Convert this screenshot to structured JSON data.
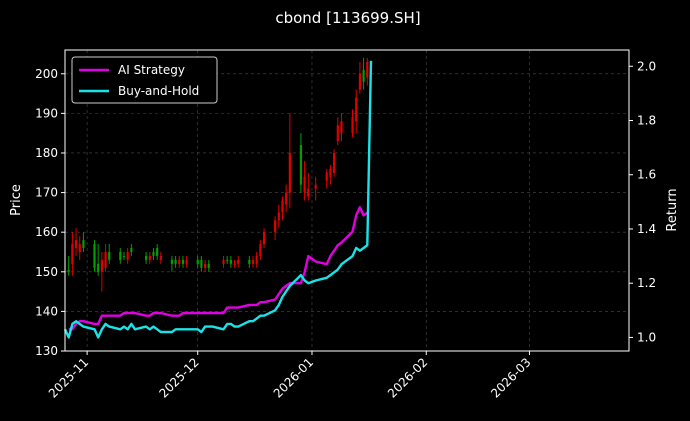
{
  "chart_data": {
    "type": "line",
    "title": "cbond [113699.SH]",
    "ylabel_left": "Price",
    "ylabel_right": "Return",
    "ylim_left": [
      130,
      206
    ],
    "ylim_right": [
      0.95,
      2.06
    ],
    "yticks_left": [
      130,
      140,
      150,
      160,
      170,
      180,
      190,
      200
    ],
    "yticks_right": [
      1.0,
      1.2,
      1.4,
      1.6,
      1.8,
      2.0
    ],
    "x_start_date": "2025-10-26",
    "x_end_date": "2026-03-28",
    "x_ticks": [
      {
        "label": "2025-11",
        "date": "2025-11-01"
      },
      {
        "label": "2025-12",
        "date": "2025-12-01"
      },
      {
        "label": "2026-01",
        "date": "2026-01-01"
      },
      {
        "label": "2026-02",
        "date": "2026-02-01"
      },
      {
        "label": "2026-03",
        "date": "2026-03-01"
      }
    ],
    "grid": true,
    "legend_position": "top-left",
    "colors": {
      "up": "#e00000",
      "down": "#00a000",
      "ai": "#e100e1",
      "bh": "#19e3e8"
    },
    "series": [
      {
        "name": "AI Strategy",
        "x": [
          "2025-10-27",
          "2025-10-28",
          "2025-10-29",
          "2025-10-30",
          "2025-10-31",
          "2025-11-03",
          "2025-11-04",
          "2025-11-05",
          "2025-11-06",
          "2025-11-07",
          "2025-11-10",
          "2025-11-11",
          "2025-11-12",
          "2025-11-13",
          "2025-11-14",
          "2025-11-17",
          "2025-11-18",
          "2025-11-19",
          "2025-11-20",
          "2025-11-21",
          "2025-11-24",
          "2025-11-25",
          "2025-11-26",
          "2025-11-27",
          "2025-11-28",
          "2025-12-01",
          "2025-12-02",
          "2025-12-03",
          "2025-12-04",
          "2025-12-05",
          "2025-12-08",
          "2025-12-09",
          "2025-12-10",
          "2025-12-11",
          "2025-12-12",
          "2025-12-15",
          "2025-12-16",
          "2025-12-17",
          "2025-12-18",
          "2025-12-19",
          "2025-12-22",
          "2025-12-23",
          "2025-12-24",
          "2025-12-25",
          "2025-12-26",
          "2025-12-29",
          "2025-12-30",
          "2025-12-31",
          "2026-01-02",
          "2026-01-05",
          "2026-01-06",
          "2026-01-07",
          "2026-01-08",
          "2026-01-09",
          "2026-01-12",
          "2026-01-13",
          "2026-01-14",
          "2026-01-15",
          "2026-01-16"
        ],
        "values": [
          1.03,
          1.03,
          1.05,
          1.06,
          1.06,
          1.05,
          1.05,
          1.08,
          1.08,
          1.08,
          1.08,
          1.09,
          1.09,
          1.09,
          1.09,
          1.08,
          1.08,
          1.09,
          1.09,
          1.09,
          1.08,
          1.08,
          1.08,
          1.09,
          1.09,
          1.09,
          1.09,
          1.09,
          1.09,
          1.09,
          1.09,
          1.11,
          1.11,
          1.11,
          1.11,
          1.12,
          1.12,
          1.12,
          1.13,
          1.13,
          1.14,
          1.16,
          1.18,
          1.19,
          1.2,
          1.2,
          1.24,
          1.3,
          1.28,
          1.27,
          1.3,
          1.32,
          1.34,
          1.35,
          1.39,
          1.45,
          1.48,
          1.45,
          1.46
        ]
      },
      {
        "name": "Buy-and-Hold",
        "x": [
          "2025-10-26",
          "2025-10-27",
          "2025-10-28",
          "2025-10-29",
          "2025-10-30",
          "2025-10-31",
          "2025-11-03",
          "2025-11-04",
          "2025-11-05",
          "2025-11-06",
          "2025-11-07",
          "2025-11-10",
          "2025-11-11",
          "2025-11-12",
          "2025-11-13",
          "2025-11-14",
          "2025-11-17",
          "2025-11-18",
          "2025-11-19",
          "2025-11-20",
          "2025-11-21",
          "2025-11-24",
          "2025-11-25",
          "2025-11-26",
          "2025-11-27",
          "2025-11-28",
          "2025-12-01",
          "2025-12-02",
          "2025-12-03",
          "2025-12-04",
          "2025-12-05",
          "2025-12-08",
          "2025-12-09",
          "2025-12-10",
          "2025-12-11",
          "2025-12-12",
          "2025-12-15",
          "2025-12-16",
          "2025-12-17",
          "2025-12-18",
          "2025-12-19",
          "2025-12-22",
          "2025-12-23",
          "2025-12-24",
          "2025-12-25",
          "2025-12-26",
          "2025-12-29",
          "2025-12-30",
          "2025-12-31",
          "2026-01-02",
          "2026-01-05",
          "2026-01-06",
          "2026-01-07",
          "2026-01-08",
          "2026-01-09",
          "2026-01-12",
          "2026-01-13",
          "2026-01-14",
          "2026-01-15",
          "2026-01-16",
          "2026-01-17"
        ],
        "values": [
          1.03,
          1.0,
          1.05,
          1.06,
          1.05,
          1.04,
          1.03,
          1.0,
          1.03,
          1.05,
          1.04,
          1.03,
          1.04,
          1.03,
          1.05,
          1.03,
          1.04,
          1.03,
          1.04,
          1.03,
          1.02,
          1.02,
          1.03,
          1.03,
          1.03,
          1.03,
          1.03,
          1.02,
          1.04,
          1.04,
          1.04,
          1.03,
          1.05,
          1.05,
          1.04,
          1.04,
          1.06,
          1.06,
          1.07,
          1.08,
          1.08,
          1.1,
          1.12,
          1.15,
          1.17,
          1.19,
          1.23,
          1.21,
          1.2,
          1.21,
          1.22,
          1.23,
          1.24,
          1.25,
          1.27,
          1.3,
          1.33,
          1.32,
          1.33,
          1.34,
          2.02
        ]
      }
    ],
    "candles": [
      {
        "date": "2025-10-27",
        "open": 150.5,
        "high": 154,
        "low": 149,
        "close": 150,
        "dir": "down"
      },
      {
        "date": "2025-10-28",
        "open": 152,
        "high": 160,
        "low": 149,
        "close": 157,
        "dir": "up"
      },
      {
        "date": "2025-10-29",
        "open": 156,
        "high": 161,
        "low": 154,
        "close": 158,
        "dir": "up"
      },
      {
        "date": "2025-10-30",
        "open": 155,
        "high": 159,
        "low": 153,
        "close": 157,
        "dir": "up"
      },
      {
        "date": "2025-10-31",
        "open": 158,
        "high": 160,
        "low": 155,
        "close": 156,
        "dir": "down"
      },
      {
        "date": "2025-11-03",
        "open": 157,
        "high": 158,
        "low": 150,
        "close": 151,
        "dir": "down"
      },
      {
        "date": "2025-11-04",
        "open": 152,
        "high": 157,
        "low": 149,
        "close": 150,
        "dir": "down"
      },
      {
        "date": "2025-11-05",
        "open": 150,
        "high": 155,
        "low": 145,
        "close": 153,
        "dir": "up"
      },
      {
        "date": "2025-11-06",
        "open": 151,
        "high": 157,
        "low": 150,
        "close": 155,
        "dir": "up"
      },
      {
        "date": "2025-11-07",
        "open": 155,
        "high": 157,
        "low": 152,
        "close": 153,
        "dir": "down"
      },
      {
        "date": "2025-11-10",
        "open": 155,
        "high": 156,
        "low": 152,
        "close": 153,
        "dir": "down"
      },
      {
        "date": "2025-11-11",
        "open": 154,
        "high": 155,
        "low": 153,
        "close": 154,
        "dir": "down"
      },
      {
        "date": "2025-11-12",
        "open": 153,
        "high": 156,
        "low": 152,
        "close": 155,
        "dir": "up"
      },
      {
        "date": "2025-11-13",
        "open": 156,
        "high": 157,
        "low": 154,
        "close": 155,
        "dir": "down"
      },
      {
        "date": "2025-11-17",
        "open": 154,
        "high": 155,
        "low": 152,
        "close": 153,
        "dir": "down"
      },
      {
        "date": "2025-11-18",
        "open": 153,
        "high": 155,
        "low": 152,
        "close": 154,
        "dir": "up"
      },
      {
        "date": "2025-11-19",
        "open": 155,
        "high": 156,
        "low": 153,
        "close": 154,
        "dir": "down"
      },
      {
        "date": "2025-11-20",
        "open": 156,
        "high": 157,
        "low": 153,
        "close": 154,
        "dir": "down"
      },
      {
        "date": "2025-11-21",
        "open": 153,
        "high": 155,
        "low": 152,
        "close": 154,
        "dir": "up"
      },
      {
        "date": "2025-11-24",
        "open": 152,
        "high": 154,
        "low": 150,
        "close": 153,
        "dir": "down"
      },
      {
        "date": "2025-11-25",
        "open": 153,
        "high": 154,
        "low": 151,
        "close": 152,
        "dir": "down"
      },
      {
        "date": "2025-11-26",
        "open": 152,
        "high": 154,
        "low": 151,
        "close": 153,
        "dir": "up"
      },
      {
        "date": "2025-11-27",
        "open": 153,
        "high": 154,
        "low": 151,
        "close": 152,
        "dir": "down"
      },
      {
        "date": "2025-11-28",
        "open": 152,
        "high": 154,
        "low": 151,
        "close": 153,
        "dir": "up"
      },
      {
        "date": "2025-12-01",
        "open": 153,
        "high": 154,
        "low": 151,
        "close": 152,
        "dir": "down"
      },
      {
        "date": "2025-12-02",
        "open": 153,
        "high": 154,
        "low": 150,
        "close": 151,
        "dir": "down"
      },
      {
        "date": "2025-12-03",
        "open": 151,
        "high": 153,
        "low": 150,
        "close": 152,
        "dir": "up"
      },
      {
        "date": "2025-12-04",
        "open": 152,
        "high": 153,
        "low": 150,
        "close": 151,
        "dir": "down"
      },
      {
        "date": "2025-12-08",
        "open": 152,
        "high": 154,
        "low": 151,
        "close": 153,
        "dir": "up"
      },
      {
        "date": "2025-12-09",
        "open": 153,
        "high": 154,
        "low": 152,
        "close": 153,
        "dir": "down"
      },
      {
        "date": "2025-12-10",
        "open": 153,
        "high": 154,
        "low": 151,
        "close": 152,
        "dir": "down"
      },
      {
        "date": "2025-12-11",
        "open": 152,
        "high": 153,
        "low": 151,
        "close": 152,
        "dir": "up"
      },
      {
        "date": "2025-12-12",
        "open": 152,
        "high": 154,
        "low": 151,
        "close": 153,
        "dir": "up"
      },
      {
        "date": "2025-12-15",
        "open": 152,
        "high": 154,
        "low": 151,
        "close": 153,
        "dir": "down"
      },
      {
        "date": "2025-12-16",
        "open": 153,
        "high": 154,
        "low": 151,
        "close": 152,
        "dir": "up"
      },
      {
        "date": "2025-12-17",
        "open": 152,
        "high": 155,
        "low": 151,
        "close": 154,
        "dir": "up"
      },
      {
        "date": "2025-12-18",
        "open": 154,
        "high": 158,
        "low": 153,
        "close": 157,
        "dir": "up"
      },
      {
        "date": "2025-12-19",
        "open": 157,
        "high": 161,
        "low": 156,
        "close": 160,
        "dir": "up"
      },
      {
        "date": "2025-12-22",
        "open": 160,
        "high": 164,
        "low": 158,
        "close": 163,
        "dir": "up"
      },
      {
        "date": "2025-12-23",
        "open": 163,
        "high": 167,
        "low": 161,
        "close": 165,
        "dir": "up"
      },
      {
        "date": "2025-12-24",
        "open": 165,
        "high": 169,
        "low": 163,
        "close": 168,
        "dir": "up"
      },
      {
        "date": "2025-12-25",
        "open": 167,
        "high": 172,
        "low": 165,
        "close": 170,
        "dir": "up"
      },
      {
        "date": "2025-12-26",
        "open": 180,
        "high": 190,
        "low": 166,
        "close": 170,
        "dir": "up"
      },
      {
        "date": "2025-12-29",
        "open": 182,
        "high": 185,
        "low": 170,
        "close": 172,
        "dir": "down"
      },
      {
        "date": "2025-12-30",
        "open": 174,
        "high": 178,
        "low": 168,
        "close": 170,
        "dir": "up"
      },
      {
        "date": "2025-12-31",
        "open": 171,
        "high": 175,
        "low": 168,
        "close": 169,
        "dir": "up"
      },
      {
        "date": "2026-01-02",
        "open": 171,
        "high": 174,
        "low": 168,
        "close": 172,
        "dir": "up"
      },
      {
        "date": "2026-01-05",
        "open": 173,
        "high": 176,
        "low": 171,
        "close": 175,
        "dir": "up"
      },
      {
        "date": "2026-01-06",
        "open": 174,
        "high": 177,
        "low": 172,
        "close": 176,
        "dir": "up"
      },
      {
        "date": "2026-01-07",
        "open": 175,
        "high": 181,
        "low": 174,
        "close": 180,
        "dir": "up"
      },
      {
        "date": "2026-01-08",
        "open": 183,
        "high": 189,
        "low": 182,
        "close": 187,
        "dir": "up"
      },
      {
        "date": "2026-01-09",
        "open": 185,
        "high": 190,
        "low": 183,
        "close": 188,
        "dir": "up"
      },
      {
        "date": "2026-01-12",
        "open": 185,
        "high": 191,
        "low": 184,
        "close": 189,
        "dir": "up"
      },
      {
        "date": "2026-01-13",
        "open": 188,
        "high": 196,
        "low": 185,
        "close": 194,
        "dir": "up"
      },
      {
        "date": "2026-01-14",
        "open": 200,
        "high": 203,
        "low": 195,
        "close": 196,
        "dir": "up"
      },
      {
        "date": "2026-01-15",
        "open": 198,
        "high": 204,
        "low": 196,
        "close": 201,
        "dir": "down"
      },
      {
        "date": "2026-01-16",
        "open": 199,
        "high": 204,
        "low": 197,
        "close": 203,
        "dir": "up"
      }
    ]
  }
}
